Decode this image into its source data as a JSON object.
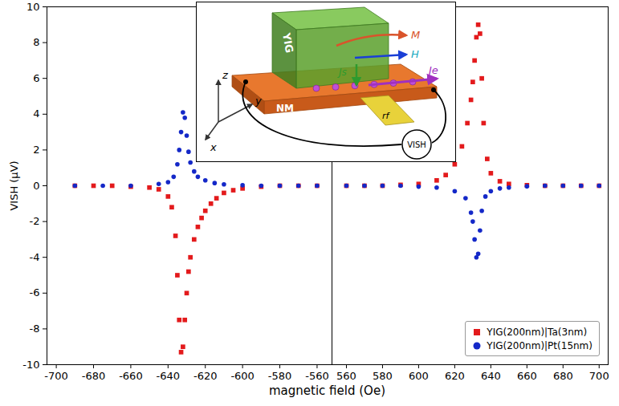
{
  "chart_data": [
    {
      "type": "scatter",
      "ylabel": "VISH (μV)",
      "xlabel": "magnetic field (Oe)",
      "xlim": [
        -705,
        -552
      ],
      "xticks": [
        -700,
        -680,
        -660,
        -640,
        -620,
        -600,
        -580,
        -560
      ],
      "ylim": [
        -10,
        10
      ],
      "yticks": [
        -10,
        -8,
        -6,
        -4,
        -2,
        0,
        2,
        4,
        6,
        8,
        10
      ],
      "series": [
        {
          "name": "YIG(200nm)|Ta(3nm)",
          "color": "#e31a1c",
          "marker": "square",
          "x": [
            -690,
            -680,
            -670,
            -660,
            -650,
            -645,
            -640,
            -638,
            -636,
            -635,
            -634,
            -633,
            -632,
            -631,
            -630,
            -629,
            -628,
            -626,
            -624,
            -622,
            -620,
            -617,
            -614,
            -610,
            -605,
            -600,
            -590,
            -580,
            -570,
            -560
          ],
          "values": [
            0,
            0,
            0,
            -0.05,
            -0.1,
            -0.2,
            -0.6,
            -1.2,
            -2.8,
            -5,
            -7.5,
            -9.3,
            -9,
            -7.5,
            -6,
            -4.8,
            -4,
            -3,
            -2.3,
            -1.8,
            -1.4,
            -1,
            -0.7,
            -0.4,
            -0.25,
            -0.15,
            -0.05,
            0,
            0,
            0
          ]
        },
        {
          "name": "YIG(200nm)|Pt(15nm)",
          "color": "#1428c8",
          "marker": "circle",
          "x": [
            -690,
            -675,
            -660,
            -645,
            -640,
            -637,
            -635,
            -634,
            -633,
            -632,
            -631,
            -630,
            -629,
            -628,
            -626,
            -624,
            -620,
            -615,
            -610,
            -600,
            -590,
            -580,
            -570,
            -560
          ],
          "values": [
            0,
            0,
            0,
            0.1,
            0.2,
            0.5,
            1.2,
            2,
            3,
            4.1,
            3.8,
            2.8,
            1.9,
            1.3,
            0.8,
            0.5,
            0.3,
            0.15,
            0.08,
            0.03,
            0,
            0,
            0,
            0
          ]
        }
      ]
    },
    {
      "type": "scatter",
      "xlim": [
        552,
        705
      ],
      "xticks": [
        560,
        580,
        600,
        620,
        640,
        660,
        680,
        700
      ],
      "ylim": [
        -10,
        10
      ],
      "yticks": [
        -10,
        -8,
        -6,
        -4,
        -2,
        0,
        2,
        4,
        6,
        8,
        10
      ],
      "tick_labels": "x",
      "legend": "lower right",
      "series": [
        {
          "name": "YIG(200nm)|Ta(3nm)",
          "color": "#e31a1c",
          "marker": "square",
          "x": [
            560,
            570,
            580,
            590,
            600,
            610,
            615,
            620,
            624,
            627,
            629,
            630,
            631,
            632,
            633,
            634,
            635,
            636,
            638,
            640,
            645,
            650,
            660,
            670,
            680,
            690,
            700
          ],
          "values": [
            0,
            0,
            0,
            0.05,
            0.1,
            0.3,
            0.6,
            1.2,
            2.2,
            3.5,
            4.8,
            5.8,
            7,
            8.3,
            9,
            8.5,
            6,
            3.5,
            1.5,
            0.7,
            0.25,
            0.1,
            0.03,
            0,
            0,
            0,
            0
          ]
        },
        {
          "name": "YIG(200nm)|Pt(15nm)",
          "color": "#1428c8",
          "marker": "circle",
          "x": [
            560,
            570,
            580,
            590,
            600,
            610,
            620,
            626,
            629,
            630,
            631,
            632,
            633,
            634,
            635,
            637,
            640,
            645,
            650,
            660,
            670,
            680,
            690,
            700
          ],
          "values": [
            0,
            0,
            0,
            0,
            -0.05,
            -0.1,
            -0.3,
            -0.7,
            -1.5,
            -2,
            -3,
            -4,
            -3.8,
            -2.5,
            -1.4,
            -0.6,
            -0.3,
            -0.15,
            -0.1,
            -0.03,
            0,
            0,
            0,
            0
          ]
        }
      ]
    }
  ],
  "inset": {
    "labels": {
      "yig": "YIG",
      "nm": "NM",
      "rf": "rf",
      "m": "M",
      "h": "H",
      "js": "Js",
      "je": "Je",
      "v": "VISH",
      "x": "x",
      "y": "y",
      "z": "z"
    }
  }
}
